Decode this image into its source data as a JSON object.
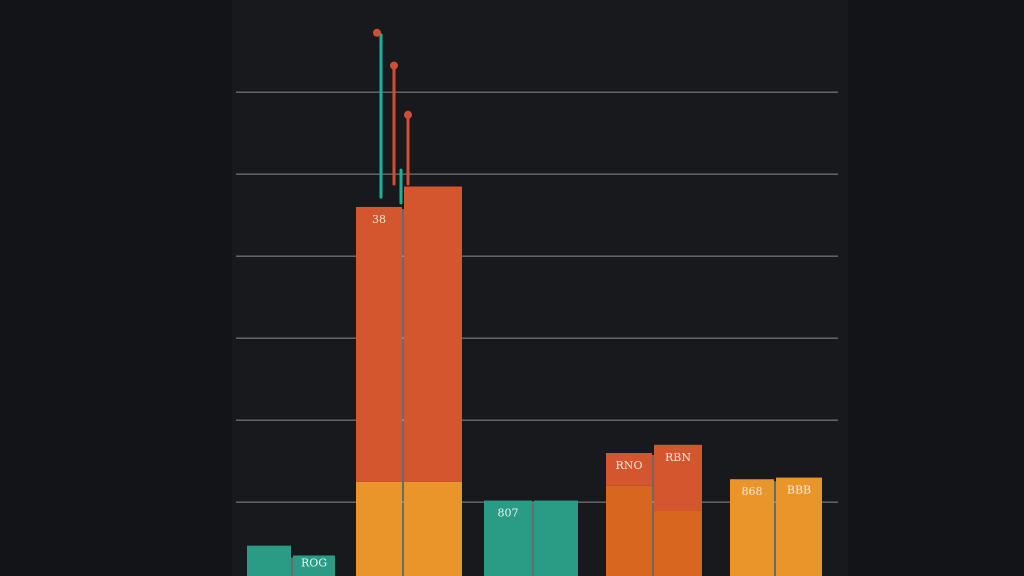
{
  "colors": {
    "background": "#131417",
    "panel": "#18191d",
    "gridline": "#6a6c70",
    "teal": "#2a9c86",
    "red_orange": "#d4562f",
    "orange": "#e9952a",
    "dark_orange": "#d8661f",
    "stem_teal": "#1fb09a",
    "stem_red": "#d24e33"
  },
  "chart_data": {
    "type": "bar",
    "title": "",
    "xlabel": "",
    "ylabel": "",
    "ylim": [
      0,
      7
    ],
    "grid": true,
    "gridlines": [
      0.9,
      1.9,
      2.9,
      3.9,
      4.9,
      5.9
    ],
    "groups": [
      {
        "bars": [
          {
            "value": 0.37,
            "segments": [
              {
                "value": 0.37,
                "color": "teal"
              }
            ],
            "label": ""
          },
          {
            "value": 0.25,
            "segments": [
              {
                "value": 0.25,
                "color": "teal"
              }
            ],
            "label": "ROG"
          }
        ]
      },
      {
        "bars": [
          {
            "value": 4.5,
            "segments": [
              {
                "value": 1.15,
                "color": "orange"
              },
              {
                "value": 3.35,
                "color": "red_orange"
              }
            ],
            "label": "38"
          },
          {
            "value": 4.75,
            "segments": [
              {
                "value": 1.15,
                "color": "orange"
              },
              {
                "value": 3.6,
                "color": "red_orange"
              }
            ],
            "label": ""
          }
        ],
        "stems": [
          {
            "top": 6.6,
            "color": "stem_teal",
            "dot": "stem_red"
          },
          {
            "top": 6.2,
            "color": "stem_red",
            "dot": "stem_red"
          },
          {
            "top": 5.6,
            "color": "stem_red",
            "dot": "stem_red"
          },
          {
            "top": 4.95,
            "color": "stem_teal",
            "dot": ""
          }
        ]
      },
      {
        "bars": [
          {
            "value": 0.92,
            "segments": [
              {
                "value": 0.92,
                "color": "teal"
              }
            ],
            "label": "807"
          },
          {
            "value": 0.92,
            "segments": [
              {
                "value": 0.92,
                "color": "teal"
              }
            ],
            "label": ""
          }
        ]
      },
      {
        "bars": [
          {
            "value": 1.5,
            "segments": [
              {
                "value": 1.1,
                "color": "dark_orange"
              },
              {
                "value": 0.4,
                "color": "red_orange"
              }
            ],
            "label": "RNO"
          },
          {
            "value": 1.6,
            "segments": [
              {
                "value": 0.8,
                "color": "dark_orange"
              },
              {
                "value": 0.8,
                "color": "red_orange"
              }
            ],
            "label": "RBN"
          }
        ]
      },
      {
        "bars": [
          {
            "value": 1.18,
            "segments": [
              {
                "value": 1.18,
                "color": "orange"
              }
            ],
            "label": "868"
          },
          {
            "value": 1.2,
            "segments": [
              {
                "value": 1.2,
                "color": "orange"
              }
            ],
            "label": "BBB"
          }
        ]
      }
    ]
  }
}
